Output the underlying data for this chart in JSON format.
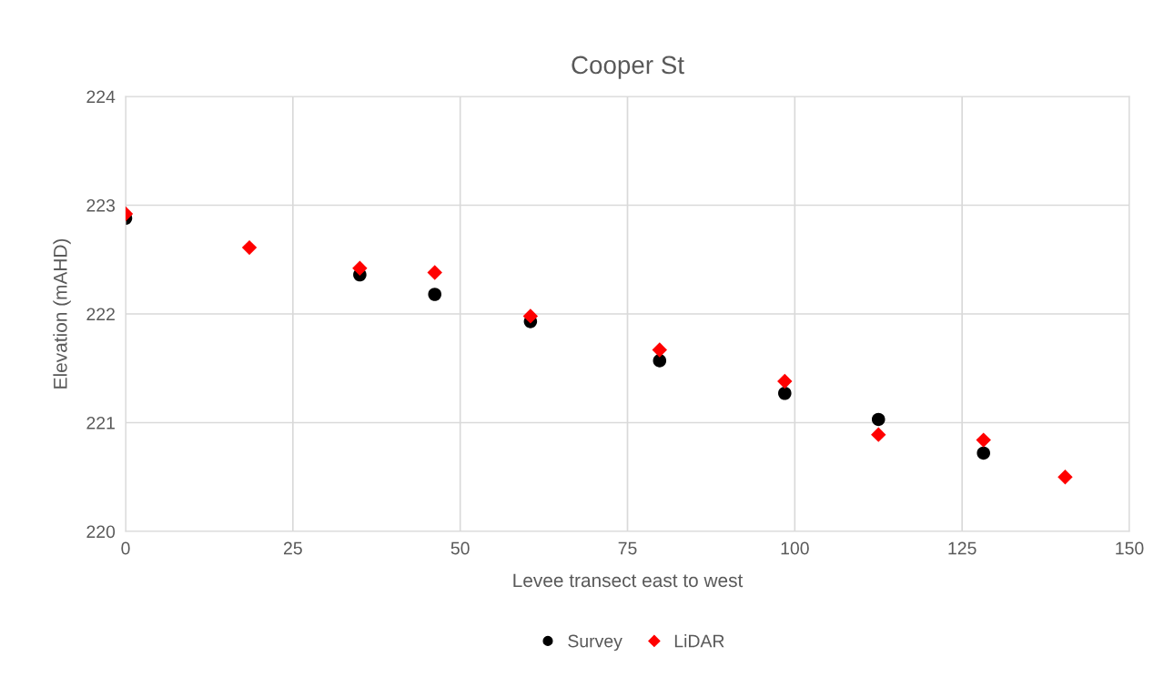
{
  "chart_data": {
    "type": "scatter",
    "title": "Cooper St",
    "xlabel": "Levee transect east to west",
    "ylabel": "Elevation (mAHD)",
    "xlim": [
      0,
      150
    ],
    "xticks": [
      0,
      25,
      50,
      75,
      100,
      125,
      150
    ],
    "ylim": [
      220,
      224
    ],
    "yticks": [
      220,
      221,
      222,
      223,
      224
    ],
    "grid": true,
    "legend": "bottom",
    "series": [
      {
        "name": "Survey",
        "color": "#000000",
        "marker": "circle",
        "x": [
          0,
          null,
          35,
          46.2,
          60.5,
          79.8,
          98.5,
          112.5,
          128.2,
          null
        ],
        "values": [
          222.88,
          null,
          222.36,
          222.18,
          221.93,
          221.57,
          221.27,
          221.03,
          220.72,
          null
        ]
      },
      {
        "name": "LiDAR",
        "color": "#ff0000",
        "marker": "diamond",
        "x": [
          0,
          18.5,
          35,
          46.2,
          60.5,
          79.8,
          98.5,
          112.5,
          128.2,
          140.4
        ],
        "values": [
          222.92,
          222.61,
          222.42,
          222.38,
          221.98,
          221.67,
          221.38,
          220.89,
          220.84,
          220.5
        ]
      }
    ]
  }
}
